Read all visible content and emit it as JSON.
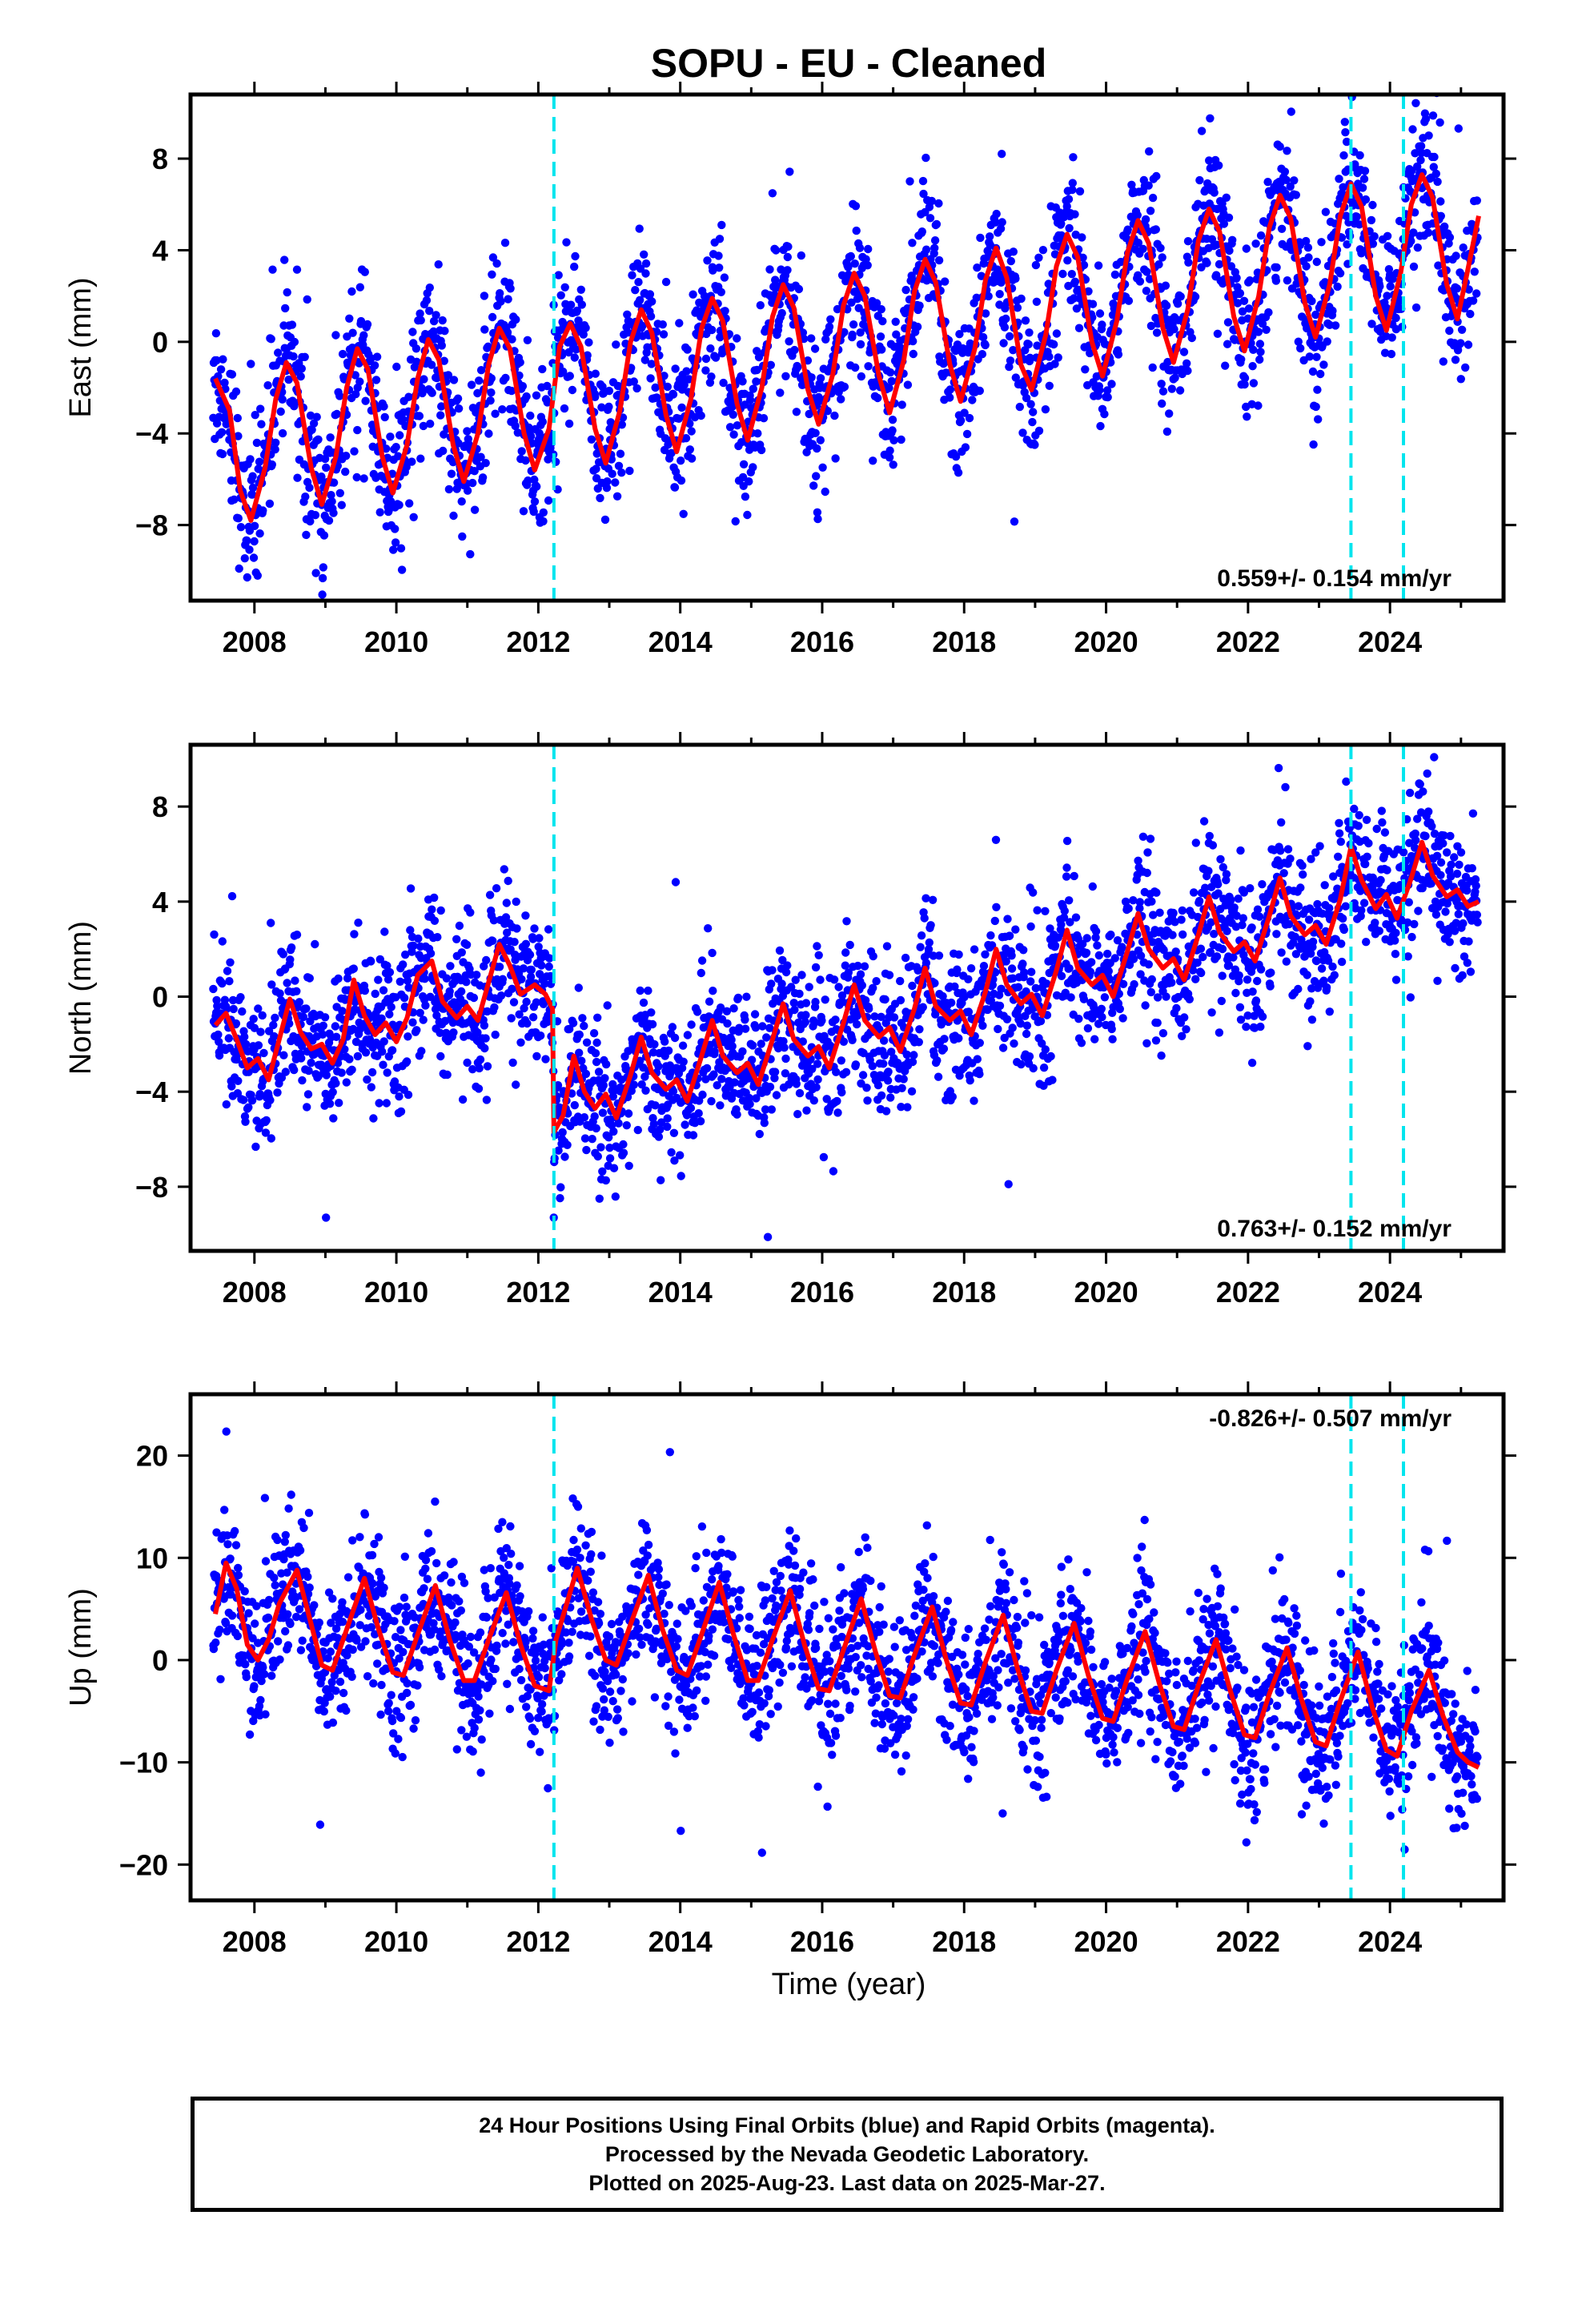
{
  "title": "SOPU  - EU - Cleaned",
  "xlabel": "Time (year)",
  "colors": {
    "final_orbits": "#0000ff",
    "model_fit": "#ff0000",
    "offsets": "#00e5ee",
    "axes": "#000000"
  },
  "footer": {
    "line1": "24 Hour Positions Using Final Orbits (blue) and Rapid Orbits (magenta).",
    "line2": "Processed by the Nevada Geodetic Laboratory.",
    "line3": "Plotted on 2025-Aug-23. Last data on 2025-Mar-27."
  },
  "chart_data": [
    {
      "type": "scatter",
      "component": "East",
      "ylabel": "East (mm)",
      "xlim": [
        2007.1,
        2025.6
      ],
      "ylim": [
        -11.3,
        10.8
      ],
      "yticks": [
        -8,
        -4,
        0,
        4,
        8
      ],
      "xticks": [
        2008,
        2010,
        2012,
        2014,
        2016,
        2018,
        2020,
        2022,
        2024
      ],
      "rate_label": "0.559+/- 0.154 mm/yr",
      "offset_lines": [
        2012.22,
        2023.45,
        2024.19
      ],
      "model_fit": [
        [
          2007.45,
          -1.6
        ],
        [
          2007.65,
          -3.0
        ],
        [
          2007.8,
          -6.5
        ],
        [
          2007.95,
          -7.8
        ],
        [
          2008.15,
          -5.5
        ],
        [
          2008.3,
          -2.5
        ],
        [
          2008.45,
          -0.9
        ],
        [
          2008.6,
          -1.8
        ],
        [
          2008.8,
          -5.5
        ],
        [
          2008.95,
          -7.1
        ],
        [
          2009.15,
          -5.0
        ],
        [
          2009.3,
          -2.0
        ],
        [
          2009.45,
          -0.3
        ],
        [
          2009.6,
          -1.2
        ],
        [
          2009.8,
          -5.0
        ],
        [
          2009.95,
          -6.6
        ],
        [
          2010.15,
          -4.5
        ],
        [
          2010.3,
          -1.6
        ],
        [
          2010.45,
          0.1
        ],
        [
          2010.6,
          -0.8
        ],
        [
          2010.8,
          -4.5
        ],
        [
          2010.95,
          -6.1
        ],
        [
          2011.15,
          -4.0
        ],
        [
          2011.3,
          -1.0
        ],
        [
          2011.45,
          0.6
        ],
        [
          2011.6,
          -0.3
        ],
        [
          2011.8,
          -4.0
        ],
        [
          2011.95,
          -5.6
        ],
        [
          2012.15,
          -3.8
        ],
        [
          2012.3,
          -0.2
        ],
        [
          2012.45,
          0.8
        ],
        [
          2012.6,
          -0.2
        ],
        [
          2012.8,
          -3.8
        ],
        [
          2012.95,
          -5.3
        ],
        [
          2013.15,
          -3.0
        ],
        [
          2013.3,
          0.0
        ],
        [
          2013.45,
          1.4
        ],
        [
          2013.6,
          0.4
        ],
        [
          2013.8,
          -3.2
        ],
        [
          2013.95,
          -4.8
        ],
        [
          2014.15,
          -2.5
        ],
        [
          2014.3,
          0.6
        ],
        [
          2014.45,
          1.9
        ],
        [
          2014.6,
          0.9
        ],
        [
          2014.8,
          -2.7
        ],
        [
          2014.95,
          -4.3
        ],
        [
          2015.15,
          -2.0
        ],
        [
          2015.3,
          1.1
        ],
        [
          2015.45,
          2.5
        ],
        [
          2015.6,
          1.5
        ],
        [
          2015.8,
          -2.1
        ],
        [
          2015.95,
          -3.6
        ],
        [
          2016.15,
          -1.4
        ],
        [
          2016.3,
          1.6
        ],
        [
          2016.45,
          3.0
        ],
        [
          2016.6,
          2.0
        ],
        [
          2016.8,
          -1.5
        ],
        [
          2016.95,
          -3.1
        ],
        [
          2017.15,
          -0.8
        ],
        [
          2017.3,
          2.2
        ],
        [
          2017.45,
          3.6
        ],
        [
          2017.6,
          2.6
        ],
        [
          2017.8,
          -1.0
        ],
        [
          2017.95,
          -2.6
        ],
        [
          2018.15,
          -0.3
        ],
        [
          2018.3,
          2.7
        ],
        [
          2018.45,
          4.1
        ],
        [
          2018.6,
          2.8
        ],
        [
          2018.8,
          -1.0
        ],
        [
          2018.95,
          -2.1
        ],
        [
          2019.15,
          0.3
        ],
        [
          2019.3,
          3.3
        ],
        [
          2019.45,
          4.7
        ],
        [
          2019.6,
          3.7
        ],
        [
          2019.8,
          0.0
        ],
        [
          2019.95,
          -1.5
        ],
        [
          2020.15,
          0.9
        ],
        [
          2020.3,
          3.9
        ],
        [
          2020.45,
          5.3
        ],
        [
          2020.6,
          4.3
        ],
        [
          2020.8,
          0.6
        ],
        [
          2020.95,
          -0.9
        ],
        [
          2021.15,
          1.4
        ],
        [
          2021.3,
          4.4
        ],
        [
          2021.45,
          5.8
        ],
        [
          2021.6,
          4.8
        ],
        [
          2021.8,
          1.1
        ],
        [
          2021.95,
          -0.4
        ],
        [
          2022.15,
          2.0
        ],
        [
          2022.3,
          5.0
        ],
        [
          2022.45,
          6.4
        ],
        [
          2022.6,
          5.4
        ],
        [
          2022.8,
          1.7
        ],
        [
          2022.95,
          0.2
        ],
        [
          2023.15,
          2.5
        ],
        [
          2023.3,
          5.5
        ],
        [
          2023.45,
          6.9
        ],
        [
          2023.6,
          5.9
        ],
        [
          2023.8,
          2.0
        ],
        [
          2023.95,
          0.5
        ],
        [
          2024.15,
          3.0
        ],
        [
          2024.3,
          6.0
        ],
        [
          2024.45,
          7.3
        ],
        [
          2024.6,
          6.3
        ],
        [
          2024.8,
          2.5
        ],
        [
          2024.95,
          1.0
        ],
        [
          2025.1,
          3.2
        ],
        [
          2025.25,
          5.5
        ]
      ]
    },
    {
      "type": "scatter",
      "component": "North",
      "ylabel": "North (mm)",
      "xlim": [
        2007.1,
        2025.6
      ],
      "ylim": [
        -10.7,
        10.6
      ],
      "yticks": [
        -8,
        -4,
        0,
        4,
        8
      ],
      "xticks": [
        2008,
        2010,
        2012,
        2014,
        2016,
        2018,
        2020,
        2022,
        2024
      ],
      "rate_label": "0.763+/- 0.152 mm/yr",
      "offset_lines": [
        2012.22,
        2023.45,
        2024.19
      ],
      "model_fit": [
        [
          2007.45,
          -1.2
        ],
        [
          2007.6,
          -0.7
        ],
        [
          2007.75,
          -1.8
        ],
        [
          2007.9,
          -3.0
        ],
        [
          2008.05,
          -2.6
        ],
        [
          2008.2,
          -3.5
        ],
        [
          2008.35,
          -1.8
        ],
        [
          2008.5,
          -0.1
        ],
        [
          2008.65,
          -1.5
        ],
        [
          2008.8,
          -2.2
        ],
        [
          2008.95,
          -2.0
        ],
        [
          2009.1,
          -2.8
        ],
        [
          2009.25,
          -1.8
        ],
        [
          2009.4,
          0.7
        ],
        [
          2009.55,
          -0.8
        ],
        [
          2009.7,
          -1.6
        ],
        [
          2009.85,
          -1.1
        ],
        [
          2010.0,
          -1.9
        ],
        [
          2010.15,
          -0.9
        ],
        [
          2010.3,
          0.9
        ],
        [
          2010.5,
          1.5
        ],
        [
          2010.65,
          -0.2
        ],
        [
          2010.85,
          -0.9
        ],
        [
          2011.0,
          -0.4
        ],
        [
          2011.15,
          -1.0
        ],
        [
          2011.3,
          0.6
        ],
        [
          2011.45,
          2.2
        ],
        [
          2011.6,
          1.3
        ],
        [
          2011.75,
          0.1
        ],
        [
          2011.95,
          0.5
        ],
        [
          2012.1,
          0.1
        ],
        [
          2012.2,
          -0.5
        ],
        [
          2012.22,
          -5.7
        ],
        [
          2012.35,
          -5.0
        ],
        [
          2012.5,
          -2.5
        ],
        [
          2012.65,
          -4.0
        ],
        [
          2012.8,
          -4.7
        ],
        [
          2012.95,
          -4.1
        ],
        [
          2013.1,
          -5.1
        ],
        [
          2013.3,
          -3.3
        ],
        [
          2013.45,
          -1.7
        ],
        [
          2013.6,
          -3.2
        ],
        [
          2013.8,
          -3.9
        ],
        [
          2013.95,
          -3.5
        ],
        [
          2014.1,
          -4.4
        ],
        [
          2014.3,
          -2.5
        ],
        [
          2014.45,
          -1.0
        ],
        [
          2014.6,
          -2.5
        ],
        [
          2014.8,
          -3.2
        ],
        [
          2014.95,
          -2.8
        ],
        [
          2015.1,
          -3.7
        ],
        [
          2015.3,
          -1.8
        ],
        [
          2015.45,
          -0.3
        ],
        [
          2015.6,
          -1.8
        ],
        [
          2015.8,
          -2.5
        ],
        [
          2015.95,
          -2.1
        ],
        [
          2016.1,
          -3.0
        ],
        [
          2016.3,
          -1.1
        ],
        [
          2016.45,
          0.5
        ],
        [
          2016.6,
          -1.0
        ],
        [
          2016.8,
          -1.7
        ],
        [
          2016.95,
          -1.3
        ],
        [
          2017.1,
          -2.3
        ],
        [
          2017.3,
          -0.5
        ],
        [
          2017.45,
          1.2
        ],
        [
          2017.6,
          -0.4
        ],
        [
          2017.8,
          -1.0
        ],
        [
          2017.95,
          -0.6
        ],
        [
          2018.1,
          -1.6
        ],
        [
          2018.3,
          0.2
        ],
        [
          2018.45,
          2.0
        ],
        [
          2018.6,
          0.5
        ],
        [
          2018.8,
          -0.3
        ],
        [
          2018.95,
          0.1
        ],
        [
          2019.1,
          -0.8
        ],
        [
          2019.3,
          1.1
        ],
        [
          2019.45,
          2.8
        ],
        [
          2019.6,
          1.2
        ],
        [
          2019.8,
          0.5
        ],
        [
          2019.95,
          0.9
        ],
        [
          2020.1,
          0.0
        ],
        [
          2020.3,
          1.9
        ],
        [
          2020.45,
          3.5
        ],
        [
          2020.6,
          2.0
        ],
        [
          2020.8,
          1.2
        ],
        [
          2020.95,
          1.6
        ],
        [
          2021.1,
          0.7
        ],
        [
          2021.3,
          2.6
        ],
        [
          2021.45,
          4.2
        ],
        [
          2021.6,
          2.7
        ],
        [
          2021.8,
          1.9
        ],
        [
          2021.95,
          2.3
        ],
        [
          2022.1,
          1.5
        ],
        [
          2022.3,
          3.4
        ],
        [
          2022.45,
          5.0
        ],
        [
          2022.6,
          3.4
        ],
        [
          2022.8,
          2.6
        ],
        [
          2022.95,
          3.0
        ],
        [
          2023.1,
          2.2
        ],
        [
          2023.3,
          4.1
        ],
        [
          2023.45,
          6.3
        ],
        [
          2023.6,
          4.9
        ],
        [
          2023.8,
          3.7
        ],
        [
          2023.95,
          4.3
        ],
        [
          2024.1,
          3.3
        ],
        [
          2024.3,
          5.0
        ],
        [
          2024.45,
          6.5
        ],
        [
          2024.6,
          5.1
        ],
        [
          2024.8,
          4.2
        ],
        [
          2024.95,
          4.5
        ],
        [
          2025.1,
          3.8
        ],
        [
          2025.25,
          4.0
        ]
      ]
    },
    {
      "type": "scatter",
      "component": "Up",
      "ylabel": "Up (mm)",
      "xlim": [
        2007.1,
        2025.6
      ],
      "ylim": [
        -23.5,
        26.0
      ],
      "yticks": [
        -20,
        -10,
        0,
        10,
        20
      ],
      "xticks": [
        2008,
        2010,
        2012,
        2014,
        2016,
        2018,
        2020,
        2022,
        2024
      ],
      "rate_label": "-0.826+/- 0.507 mm/yr",
      "offset_lines": [
        2012.22,
        2023.45,
        2024.19
      ],
      "model_fit": [
        [
          2007.45,
          4.5
        ],
        [
          2007.6,
          9.5
        ],
        [
          2007.75,
          7.0
        ],
        [
          2007.9,
          1.5
        ],
        [
          2008.05,
          0.0
        ],
        [
          2008.2,
          2.0
        ],
        [
          2008.35,
          5.5
        ],
        [
          2008.6,
          8.8
        ],
        [
          2008.8,
          3.5
        ],
        [
          2008.95,
          -0.5
        ],
        [
          2009.1,
          -1.0
        ],
        [
          2009.3,
          3.0
        ],
        [
          2009.55,
          8.0
        ],
        [
          2009.75,
          3.0
        ],
        [
          2009.95,
          -1.2
        ],
        [
          2010.1,
          -1.5
        ],
        [
          2010.3,
          2.5
        ],
        [
          2010.55,
          7.3
        ],
        [
          2010.75,
          2.0
        ],
        [
          2010.95,
          -2.0
        ],
        [
          2011.1,
          -2.0
        ],
        [
          2011.3,
          2.0
        ],
        [
          2011.55,
          6.6
        ],
        [
          2011.75,
          1.5
        ],
        [
          2011.95,
          -2.5
        ],
        [
          2012.15,
          -3.0
        ],
        [
          2012.25,
          2.0
        ],
        [
          2012.55,
          9.0
        ],
        [
          2012.75,
          4.0
        ],
        [
          2012.95,
          0.0
        ],
        [
          2013.1,
          -0.5
        ],
        [
          2013.3,
          3.5
        ],
        [
          2013.55,
          8.3
        ],
        [
          2013.75,
          3.0
        ],
        [
          2013.95,
          -1.0
        ],
        [
          2014.1,
          -1.5
        ],
        [
          2014.3,
          2.5
        ],
        [
          2014.55,
          7.6
        ],
        [
          2014.75,
          2.5
        ],
        [
          2014.95,
          -2.0
        ],
        [
          2015.1,
          -2.0
        ],
        [
          2015.3,
          2.0
        ],
        [
          2015.55,
          6.8
        ],
        [
          2015.75,
          1.5
        ],
        [
          2015.95,
          -2.8
        ],
        [
          2016.1,
          -3.0
        ],
        [
          2016.3,
          1.0
        ],
        [
          2016.55,
          6.0
        ],
        [
          2016.75,
          0.8
        ],
        [
          2016.95,
          -3.5
        ],
        [
          2017.1,
          -3.7
        ],
        [
          2017.3,
          0.5
        ],
        [
          2017.55,
          5.2
        ],
        [
          2017.75,
          0.0
        ],
        [
          2017.95,
          -4.2
        ],
        [
          2018.1,
          -4.4
        ],
        [
          2018.3,
          -0.2
        ],
        [
          2018.55,
          4.4
        ],
        [
          2018.75,
          -0.8
        ],
        [
          2018.95,
          -5.0
        ],
        [
          2019.1,
          -5.2
        ],
        [
          2019.3,
          -1.0
        ],
        [
          2019.55,
          3.6
        ],
        [
          2019.75,
          -1.5
        ],
        [
          2019.95,
          -5.7
        ],
        [
          2020.1,
          -6.0
        ],
        [
          2020.3,
          -1.8
        ],
        [
          2020.55,
          2.8
        ],
        [
          2020.75,
          -2.3
        ],
        [
          2020.95,
          -6.5
        ],
        [
          2021.1,
          -6.8
        ],
        [
          2021.3,
          -2.5
        ],
        [
          2021.55,
          2.0
        ],
        [
          2021.75,
          -3.0
        ],
        [
          2021.95,
          -7.3
        ],
        [
          2022.1,
          -7.6
        ],
        [
          2022.3,
          -3.3
        ],
        [
          2022.55,
          1.2
        ],
        [
          2022.75,
          -3.8
        ],
        [
          2022.95,
          -8.0
        ],
        [
          2023.1,
          -8.4
        ],
        [
          2023.3,
          -4.0
        ],
        [
          2023.55,
          0.8
        ],
        [
          2023.75,
          -4.6
        ],
        [
          2023.95,
          -8.8
        ],
        [
          2024.1,
          -9.4
        ],
        [
          2024.3,
          -5.0
        ],
        [
          2024.55,
          -1.0
        ],
        [
          2024.75,
          -5.5
        ],
        [
          2024.95,
          -9.0
        ],
        [
          2025.1,
          -10.0
        ],
        [
          2025.25,
          -10.5
        ]
      ]
    }
  ]
}
